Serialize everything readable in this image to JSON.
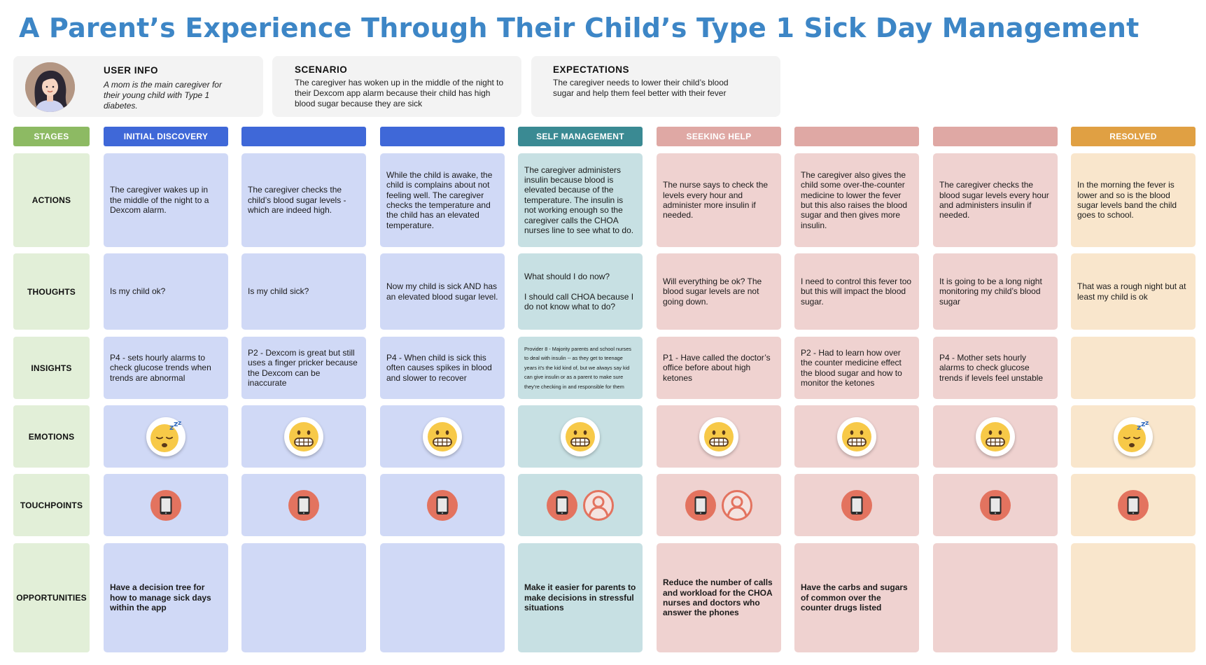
{
  "title": "A Parent’s Experience Through Their Child’s Type 1 Sick Day Management",
  "user_info": {
    "heading": "USER INFO",
    "text": "A mom is the main caregiver for their young child with Type 1 diabetes."
  },
  "scenario": {
    "heading": "SCENARIO",
    "text": "The caregiver has woken up in the middle of the night to their Dexcom app alarm because their child has high blood sugar because they are sick"
  },
  "expectations": {
    "heading": "EXPECTATIONS",
    "text": "The caregiver needs to lower their child’s blood sugar and help them feel better with their fever"
  },
  "colors": {
    "stages_label": "#8dba63",
    "initial_discovery": "#3f68d8",
    "self_management": "#3a8a93",
    "seeking_help": "#dfa8a4",
    "resolved": "#e0a043",
    "cell_blue": "#d0d9f6",
    "cell_teal": "#c7e0e3",
    "cell_pink": "#efd2d0",
    "cell_peach": "#f9e6cc",
    "row_label_bg": "#e2efd8",
    "touchpoint": "#e3735f"
  },
  "row_labels": {
    "stages": "STAGES",
    "actions": "ACTIONS",
    "thoughts": "THOUGHTS",
    "insights": "INSIGHTS",
    "emotions": "EMOTIONS",
    "touchpoints": "TOUCHPOINTS",
    "opportunities": "OPPORTUNITIES"
  },
  "columns": [
    {
      "stage": "INITIAL DISCOVERY",
      "action": "The caregiver wakes up in the middle of the night to a Dexcom alarm.",
      "thought": "Is my child ok?",
      "insight": "P4 - sets hourly alarms to check glucose trends when trends are abnormal",
      "emotion": "sleepy-face-icon",
      "touchpoints": [
        "phone-icon"
      ],
      "opportunity": "Have a decision tree for how to manage sick days within the app"
    },
    {
      "stage": "",
      "action": "The caregiver checks the child’s blood sugar levels - which are indeed high.",
      "thought": "Is my child sick?",
      "insight": "P2 - Dexcom is great but still uses a finger pricker because the Dexcom can be inaccurate",
      "emotion": "grimacing-face-icon",
      "touchpoints": [
        "phone-icon"
      ],
      "opportunity": ""
    },
    {
      "stage": "",
      "action": "While the child is awake, the child is complains about not feeling well. The caregiver checks the temperature and the child has an elevated temperature.",
      "thought": "Now my child is sick AND has an elevated blood sugar level.",
      "insight": "P4 - When child is sick this often causes spikes in blood and slower to recover",
      "emotion": "grimacing-face-icon",
      "touchpoints": [
        "phone-icon"
      ],
      "opportunity": ""
    },
    {
      "stage": "SELF MANAGEMENT",
      "action": "The caregiver administers insulin because blood is elevated because of the temperature. The insulin is not working enough so the caregiver calls the CHOA nurses line to see what to do.",
      "thought": "What should I do now?\n\nI should call CHOA because I do not know what to do?",
      "insight": "Provider 8 - Majority parents and school nurses to deal with insulin -- as they get to teenage years it’s the kid kind of, but we always say kid can give insulin or as a parent to make sure they’re checking in and responsible for them",
      "emotion": "grimacing-face-icon",
      "touchpoints": [
        "phone-icon",
        "person-icon"
      ],
      "opportunity": "Make it easier for parents to make decisions in stressful situations"
    },
    {
      "stage": "SEEKING HELP",
      "action": "The nurse says to check the levels every hour and administer more insulin if needed.",
      "thought": "Will everything be ok? The blood sugar levels are not going down.",
      "insight": "P1 - Have called the doctor’s office before about high ketones",
      "emotion": "grimacing-face-icon",
      "touchpoints": [
        "phone-icon",
        "person-icon"
      ],
      "opportunity": "Reduce the number of calls and workload for the CHOA nurses and doctors who answer the phones"
    },
    {
      "stage": "",
      "action": "The caregiver also gives the child some over-the-counter medicine to lower the fever but this also raises the blood sugar and then gives more insulin.",
      "thought": "I need to control this fever too but this will impact the blood sugar.",
      "insight": "P2 - Had to learn how over the counter medicine effect the blood sugar and how to monitor the ketones",
      "emotion": "grimacing-face-icon",
      "touchpoints": [
        "phone-icon"
      ],
      "opportunity": "Have the carbs and sugars of common over the counter drugs listed"
    },
    {
      "stage": "",
      "action": "The caregiver checks the blood sugar levels every hour and administers insulin if needed.",
      "thought": "It is going to be a long night monitoring my child’s blood sugar",
      "insight": "P4 - Mother sets hourly alarms to check glucose trends if levels feel unstable",
      "emotion": "grimacing-face-icon",
      "touchpoints": [
        "phone-icon"
      ],
      "opportunity": ""
    },
    {
      "stage": "RESOLVED",
      "action": "In the morning the fever is lower and so is the blood sugar levels band the child goes to school.",
      "thought": "That was a rough night but at least my child is ok",
      "insight": "",
      "emotion": "sleepy-face-icon",
      "touchpoints": [
        "phone-icon"
      ],
      "opportunity": ""
    }
  ]
}
